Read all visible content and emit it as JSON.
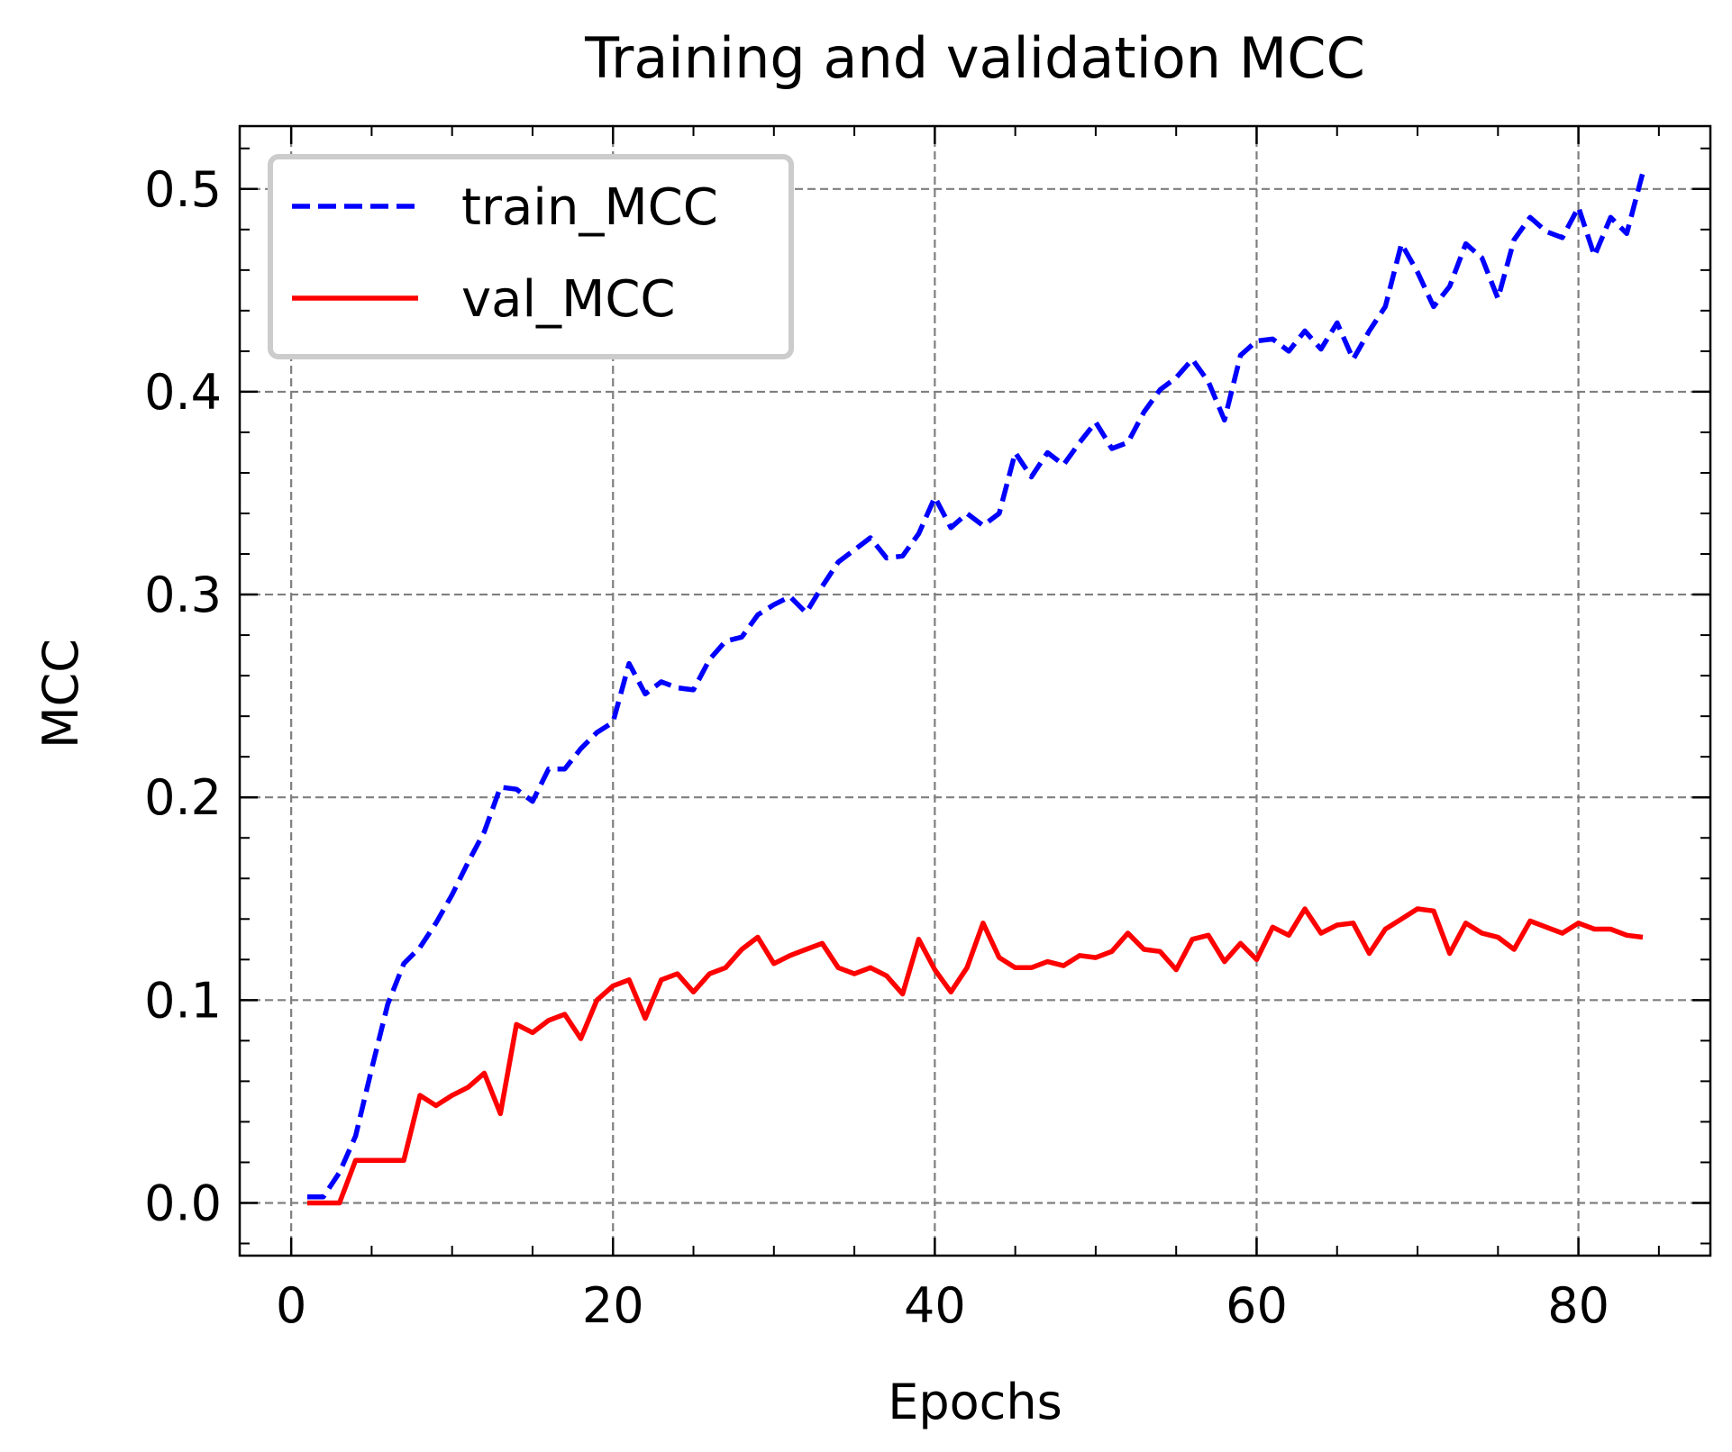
{
  "chart_data": {
    "type": "line",
    "title": "Training and validation MCC",
    "xlabel": "Epochs",
    "ylabel": "MCC",
    "xlim": [
      -3.2,
      88.2
    ],
    "ylim": [
      -0.026,
      0.531
    ],
    "x_ticks": [
      0,
      20,
      40,
      60,
      80
    ],
    "x_tick_labels": [
      "0",
      "20",
      "40",
      "60",
      "80"
    ],
    "x_minor_step": 5,
    "y_ticks": [
      0.0,
      0.1,
      0.2,
      0.3,
      0.4,
      0.5
    ],
    "y_tick_labels": [
      "0.0",
      "0.1",
      "0.2",
      "0.3",
      "0.4",
      "0.5"
    ],
    "y_minor_step": 0.02,
    "grid": true,
    "legend_position": "top-left",
    "x": [
      1,
      2,
      3,
      4,
      5,
      6,
      7,
      8,
      9,
      10,
      11,
      12,
      13,
      14,
      15,
      16,
      17,
      18,
      19,
      20,
      21,
      22,
      23,
      24,
      25,
      26,
      27,
      28,
      29,
      30,
      31,
      32,
      33,
      34,
      35,
      36,
      37,
      38,
      39,
      40,
      41,
      42,
      43,
      44,
      45,
      46,
      47,
      48,
      49,
      50,
      51,
      52,
      53,
      54,
      55,
      56,
      57,
      58,
      59,
      60,
      61,
      62,
      63,
      64,
      65,
      66,
      67,
      68,
      69,
      70,
      71,
      72,
      73,
      74,
      75,
      76,
      77,
      78,
      79,
      80,
      81,
      82,
      83,
      84
    ],
    "series": [
      {
        "name": "train_MCC",
        "color": "#0000ff",
        "style": "dashed",
        "values": [
          0.003,
          0.003,
          0.015,
          0.033,
          0.066,
          0.098,
          0.118,
          0.126,
          0.138,
          0.152,
          0.168,
          0.183,
          0.205,
          0.204,
          0.198,
          0.214,
          0.214,
          0.224,
          0.232,
          0.237,
          0.266,
          0.251,
          0.257,
          0.254,
          0.253,
          0.268,
          0.277,
          0.279,
          0.29,
          0.295,
          0.299,
          0.291,
          0.304,
          0.316,
          0.322,
          0.328,
          0.318,
          0.319,
          0.33,
          0.348,
          0.333,
          0.34,
          0.334,
          0.34,
          0.37,
          0.358,
          0.37,
          0.364,
          0.375,
          0.385,
          0.372,
          0.375,
          0.39,
          0.401,
          0.407,
          0.416,
          0.405,
          0.386,
          0.418,
          0.425,
          0.426,
          0.42,
          0.43,
          0.421,
          0.434,
          0.416,
          0.43,
          0.442,
          0.473,
          0.459,
          0.442,
          0.452,
          0.473,
          0.466,
          0.446,
          0.475,
          0.486,
          0.479,
          0.476,
          0.491,
          0.467,
          0.486,
          0.478,
          0.508
        ]
      },
      {
        "name": "val_MCC",
        "color": "#ff0000",
        "style": "solid",
        "values": [
          0.0,
          0.0,
          0.0,
          0.021,
          0.021,
          0.021,
          0.021,
          0.053,
          0.048,
          0.053,
          0.057,
          0.064,
          0.044,
          0.088,
          0.084,
          0.09,
          0.093,
          0.081,
          0.1,
          0.107,
          0.11,
          0.091,
          0.11,
          0.113,
          0.104,
          0.113,
          0.116,
          0.125,
          0.131,
          0.118,
          0.122,
          0.125,
          0.128,
          0.116,
          0.113,
          0.116,
          0.112,
          0.103,
          0.13,
          0.115,
          0.104,
          0.116,
          0.138,
          0.121,
          0.116,
          0.116,
          0.119,
          0.117,
          0.122,
          0.121,
          0.124,
          0.133,
          0.125,
          0.124,
          0.115,
          0.13,
          0.132,
          0.119,
          0.128,
          0.12,
          0.136,
          0.132,
          0.145,
          0.133,
          0.137,
          0.138,
          0.123,
          0.135,
          0.14,
          0.145,
          0.144,
          0.123,
          0.138,
          0.133,
          0.131,
          0.125,
          0.139,
          0.136,
          0.133,
          0.138,
          0.135,
          0.135,
          0.132,
          0.131
        ]
      }
    ]
  }
}
